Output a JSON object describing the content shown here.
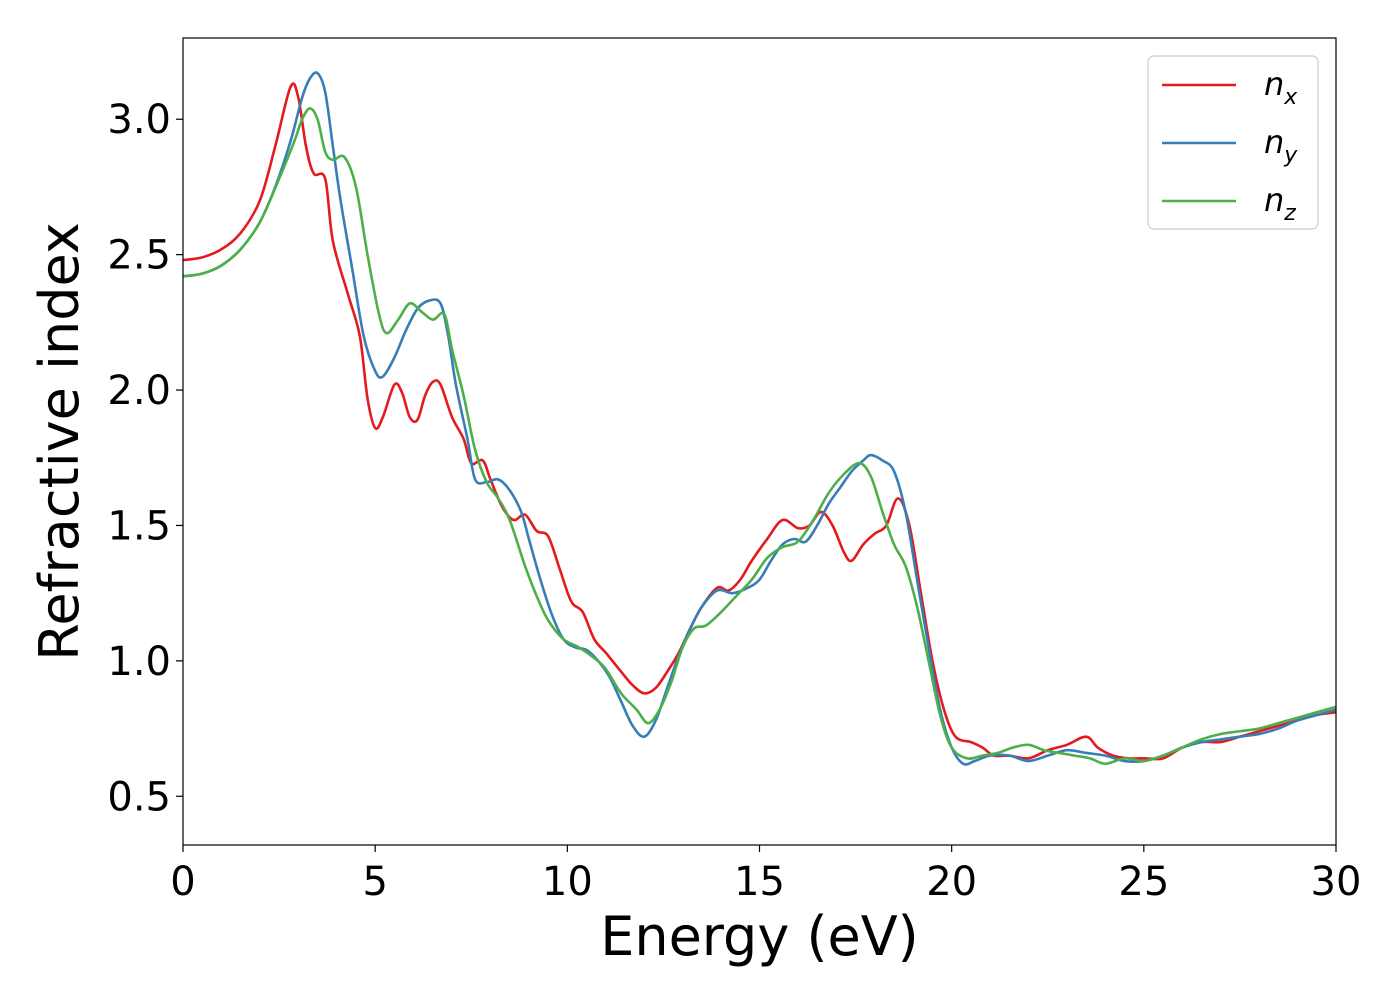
{
  "chart_data": {
    "type": "line",
    "xlabel": "Energy (eV)",
    "ylabel": "Refractive index",
    "xlim": [
      0,
      30
    ],
    "ylim": [
      0.32,
      3.3
    ],
    "x_ticks": [
      "0",
      "5",
      "10",
      "15",
      "20",
      "25",
      "30"
    ],
    "y_ticks": [
      "0.5",
      "1.0",
      "1.5",
      "2.0",
      "2.5",
      "3.0"
    ],
    "legend_position": "top-right",
    "grid": false,
    "series": [
      {
        "name": "n",
        "subscript": "x",
        "color": "#e41a1c",
        "points": [
          [
            0,
            2.48
          ],
          [
            0.5,
            2.49
          ],
          [
            1.0,
            2.52
          ],
          [
            1.5,
            2.58
          ],
          [
            2.0,
            2.7
          ],
          [
            2.4,
            2.9
          ],
          [
            2.8,
            3.12
          ],
          [
            3.0,
            3.08
          ],
          [
            3.2,
            2.9
          ],
          [
            3.4,
            2.8
          ],
          [
            3.7,
            2.78
          ],
          [
            3.9,
            2.55
          ],
          [
            4.3,
            2.35
          ],
          [
            4.6,
            2.2
          ],
          [
            4.8,
            1.97
          ],
          [
            5.0,
            1.86
          ],
          [
            5.2,
            1.9
          ],
          [
            5.5,
            2.02
          ],
          [
            5.7,
            1.99
          ],
          [
            5.9,
            1.9
          ],
          [
            6.1,
            1.89
          ],
          [
            6.3,
            1.98
          ],
          [
            6.5,
            2.03
          ],
          [
            6.7,
            2.02
          ],
          [
            7.0,
            1.9
          ],
          [
            7.3,
            1.82
          ],
          [
            7.5,
            1.73
          ],
          [
            7.8,
            1.74
          ],
          [
            8.0,
            1.67
          ],
          [
            8.3,
            1.57
          ],
          [
            8.6,
            1.52
          ],
          [
            8.9,
            1.54
          ],
          [
            9.2,
            1.48
          ],
          [
            9.5,
            1.46
          ],
          [
            9.8,
            1.34
          ],
          [
            10.1,
            1.22
          ],
          [
            10.4,
            1.18
          ],
          [
            10.7,
            1.08
          ],
          [
            11.0,
            1.03
          ],
          [
            11.4,
            0.96
          ],
          [
            11.7,
            0.91
          ],
          [
            12.0,
            0.88
          ],
          [
            12.3,
            0.9
          ],
          [
            12.6,
            0.96
          ],
          [
            12.9,
            1.03
          ],
          [
            13.2,
            1.12
          ],
          [
            13.5,
            1.2
          ],
          [
            13.9,
            1.27
          ],
          [
            14.2,
            1.26
          ],
          [
            14.5,
            1.3
          ],
          [
            14.8,
            1.37
          ],
          [
            15.2,
            1.45
          ],
          [
            15.6,
            1.52
          ],
          [
            16.0,
            1.49
          ],
          [
            16.3,
            1.5
          ],
          [
            16.6,
            1.55
          ],
          [
            16.9,
            1.5
          ],
          [
            17.2,
            1.4
          ],
          [
            17.4,
            1.37
          ],
          [
            17.7,
            1.43
          ],
          [
            18.0,
            1.47
          ],
          [
            18.3,
            1.5
          ],
          [
            18.6,
            1.6
          ],
          [
            18.9,
            1.5
          ],
          [
            19.2,
            1.25
          ],
          [
            19.5,
            1.0
          ],
          [
            19.8,
            0.82
          ],
          [
            20.1,
            0.72
          ],
          [
            20.5,
            0.7
          ],
          [
            20.8,
            0.68
          ],
          [
            21.1,
            0.65
          ],
          [
            21.5,
            0.65
          ],
          [
            22.0,
            0.64
          ],
          [
            22.5,
            0.67
          ],
          [
            23.0,
            0.69
          ],
          [
            23.5,
            0.72
          ],
          [
            23.8,
            0.68
          ],
          [
            24.2,
            0.65
          ],
          [
            24.6,
            0.64
          ],
          [
            25.0,
            0.64
          ],
          [
            25.5,
            0.64
          ],
          [
            26.0,
            0.68
          ],
          [
            26.5,
            0.7
          ],
          [
            27.0,
            0.7
          ],
          [
            27.5,
            0.72
          ],
          [
            28.0,
            0.74
          ],
          [
            28.5,
            0.76
          ],
          [
            29.0,
            0.78
          ],
          [
            29.5,
            0.8
          ],
          [
            30.0,
            0.81
          ]
        ]
      },
      {
        "name": "n",
        "subscript": "y",
        "color": "#377eb8",
        "points": [
          [
            0,
            2.42
          ],
          [
            0.5,
            2.43
          ],
          [
            1.0,
            2.46
          ],
          [
            1.5,
            2.52
          ],
          [
            2.0,
            2.62
          ],
          [
            2.4,
            2.75
          ],
          [
            2.8,
            2.92
          ],
          [
            3.1,
            3.08
          ],
          [
            3.3,
            3.15
          ],
          [
            3.5,
            3.17
          ],
          [
            3.7,
            3.1
          ],
          [
            3.9,
            2.9
          ],
          [
            4.1,
            2.7
          ],
          [
            4.4,
            2.45
          ],
          [
            4.7,
            2.2
          ],
          [
            5.0,
            2.07
          ],
          [
            5.2,
            2.05
          ],
          [
            5.5,
            2.12
          ],
          [
            5.8,
            2.22
          ],
          [
            6.1,
            2.3
          ],
          [
            6.4,
            2.33
          ],
          [
            6.7,
            2.32
          ],
          [
            6.9,
            2.2
          ],
          [
            7.1,
            2.02
          ],
          [
            7.4,
            1.82
          ],
          [
            7.6,
            1.67
          ],
          [
            7.9,
            1.66
          ],
          [
            8.2,
            1.67
          ],
          [
            8.5,
            1.63
          ],
          [
            8.8,
            1.55
          ],
          [
            9.0,
            1.45
          ],
          [
            9.3,
            1.3
          ],
          [
            9.6,
            1.17
          ],
          [
            9.9,
            1.08
          ],
          [
            10.2,
            1.05
          ],
          [
            10.5,
            1.04
          ],
          [
            10.8,
            1.0
          ],
          [
            11.1,
            0.94
          ],
          [
            11.4,
            0.85
          ],
          [
            11.7,
            0.76
          ],
          [
            12.0,
            0.72
          ],
          [
            12.3,
            0.78
          ],
          [
            12.6,
            0.9
          ],
          [
            12.9,
            1.02
          ],
          [
            13.2,
            1.12
          ],
          [
            13.5,
            1.2
          ],
          [
            13.9,
            1.26
          ],
          [
            14.3,
            1.25
          ],
          [
            14.7,
            1.27
          ],
          [
            15.0,
            1.3
          ],
          [
            15.3,
            1.37
          ],
          [
            15.6,
            1.43
          ],
          [
            15.9,
            1.45
          ],
          [
            16.2,
            1.44
          ],
          [
            16.5,
            1.5
          ],
          [
            16.8,
            1.58
          ],
          [
            17.1,
            1.64
          ],
          [
            17.4,
            1.7
          ],
          [
            17.7,
            1.74
          ],
          [
            17.9,
            1.76
          ],
          [
            18.2,
            1.74
          ],
          [
            18.5,
            1.7
          ],
          [
            18.8,
            1.55
          ],
          [
            19.1,
            1.3
          ],
          [
            19.4,
            1.05
          ],
          [
            19.7,
            0.82
          ],
          [
            20.0,
            0.68
          ],
          [
            20.3,
            0.62
          ],
          [
            20.6,
            0.63
          ],
          [
            21.0,
            0.65
          ],
          [
            21.5,
            0.65
          ],
          [
            22.0,
            0.63
          ],
          [
            22.5,
            0.65
          ],
          [
            23.0,
            0.67
          ],
          [
            23.5,
            0.66
          ],
          [
            24.0,
            0.65
          ],
          [
            24.5,
            0.63
          ],
          [
            25.0,
            0.63
          ],
          [
            25.5,
            0.65
          ],
          [
            26.0,
            0.68
          ],
          [
            26.5,
            0.7
          ],
          [
            27.0,
            0.71
          ],
          [
            27.5,
            0.72
          ],
          [
            28.0,
            0.73
          ],
          [
            28.5,
            0.75
          ],
          [
            29.0,
            0.78
          ],
          [
            29.5,
            0.8
          ],
          [
            30.0,
            0.82
          ]
        ]
      },
      {
        "name": "n",
        "subscript": "z",
        "color": "#4daf4a",
        "points": [
          [
            0,
            2.42
          ],
          [
            0.5,
            2.43
          ],
          [
            1.0,
            2.46
          ],
          [
            1.5,
            2.52
          ],
          [
            2.0,
            2.62
          ],
          [
            2.5,
            2.78
          ],
          [
            2.9,
            2.92
          ],
          [
            3.1,
            3.0
          ],
          [
            3.3,
            3.04
          ],
          [
            3.5,
            3.0
          ],
          [
            3.7,
            2.88
          ],
          [
            3.9,
            2.85
          ],
          [
            4.2,
            2.86
          ],
          [
            4.5,
            2.75
          ],
          [
            4.8,
            2.5
          ],
          [
            5.1,
            2.28
          ],
          [
            5.3,
            2.21
          ],
          [
            5.6,
            2.26
          ],
          [
            5.9,
            2.32
          ],
          [
            6.2,
            2.29
          ],
          [
            6.5,
            2.26
          ],
          [
            6.8,
            2.28
          ],
          [
            7.0,
            2.15
          ],
          [
            7.3,
            1.98
          ],
          [
            7.6,
            1.78
          ],
          [
            7.9,
            1.66
          ],
          [
            8.2,
            1.6
          ],
          [
            8.5,
            1.52
          ],
          [
            8.9,
            1.35
          ],
          [
            9.2,
            1.24
          ],
          [
            9.5,
            1.15
          ],
          [
            9.9,
            1.08
          ],
          [
            10.3,
            1.05
          ],
          [
            10.7,
            1.01
          ],
          [
            11.0,
            0.97
          ],
          [
            11.4,
            0.88
          ],
          [
            11.8,
            0.82
          ],
          [
            12.1,
            0.77
          ],
          [
            12.4,
            0.82
          ],
          [
            12.7,
            0.92
          ],
          [
            13.0,
            1.05
          ],
          [
            13.3,
            1.12
          ],
          [
            13.6,
            1.13
          ],
          [
            14.0,
            1.18
          ],
          [
            14.4,
            1.24
          ],
          [
            14.8,
            1.3
          ],
          [
            15.2,
            1.38
          ],
          [
            15.6,
            1.42
          ],
          [
            16.0,
            1.44
          ],
          [
            16.4,
            1.52
          ],
          [
            16.8,
            1.62
          ],
          [
            17.2,
            1.69
          ],
          [
            17.6,
            1.73
          ],
          [
            17.9,
            1.68
          ],
          [
            18.2,
            1.55
          ],
          [
            18.5,
            1.43
          ],
          [
            18.8,
            1.35
          ],
          [
            19.1,
            1.2
          ],
          [
            19.4,
            1.0
          ],
          [
            19.7,
            0.8
          ],
          [
            20.0,
            0.68
          ],
          [
            20.4,
            0.64
          ],
          [
            20.8,
            0.65
          ],
          [
            21.2,
            0.66
          ],
          [
            21.6,
            0.68
          ],
          [
            22.0,
            0.69
          ],
          [
            22.4,
            0.67
          ],
          [
            22.8,
            0.66
          ],
          [
            23.2,
            0.65
          ],
          [
            23.6,
            0.64
          ],
          [
            24.0,
            0.62
          ],
          [
            24.5,
            0.64
          ],
          [
            25.0,
            0.63
          ],
          [
            25.5,
            0.65
          ],
          [
            26.0,
            0.68
          ],
          [
            26.5,
            0.71
          ],
          [
            27.0,
            0.73
          ],
          [
            27.5,
            0.74
          ],
          [
            28.0,
            0.75
          ],
          [
            28.5,
            0.77
          ],
          [
            29.0,
            0.79
          ],
          [
            29.5,
            0.81
          ],
          [
            30.0,
            0.83
          ]
        ]
      }
    ]
  }
}
